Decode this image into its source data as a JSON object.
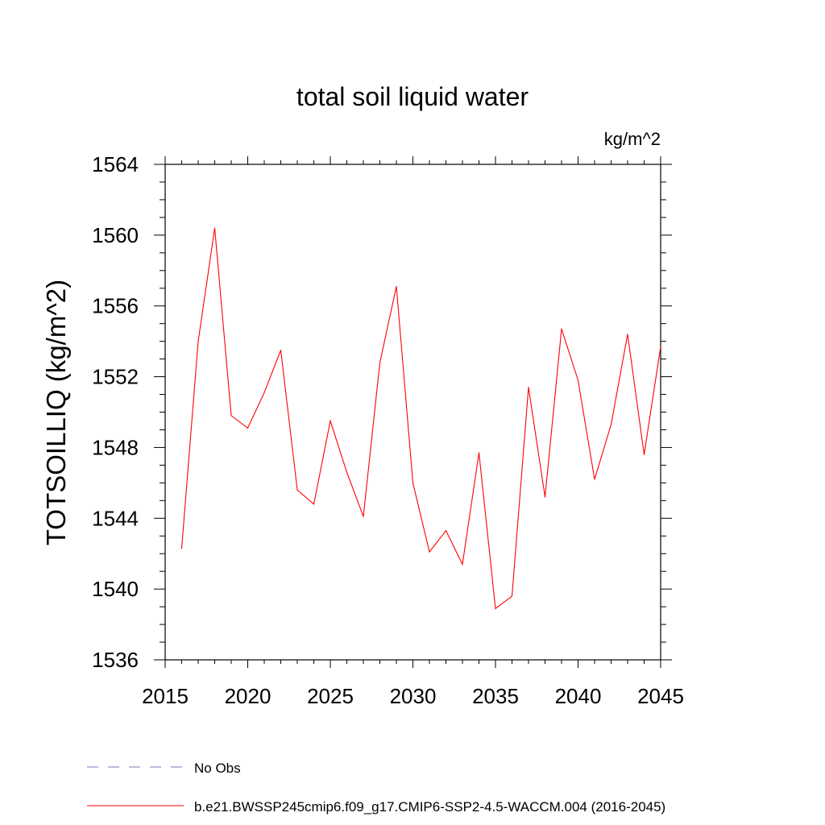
{
  "chart_data": {
    "type": "line",
    "title": "total soil liquid water",
    "units_label": "kg/m^2",
    "ylabel": "TOTSOILLIQ  (kg/m^2)",
    "xlabel": "",
    "xlim": [
      2015,
      2045
    ],
    "ylim": [
      1536,
      1564
    ],
    "x_ticks": [
      2015,
      2020,
      2025,
      2030,
      2035,
      2040,
      2045
    ],
    "x_tick_labels": [
      "2015",
      "2020",
      "2025",
      "2030",
      "2035",
      "2040",
      "2045"
    ],
    "y_ticks": [
      1536,
      1540,
      1544,
      1548,
      1552,
      1556,
      1560,
      1564
    ],
    "y_tick_labels": [
      "1536",
      "1540",
      "1544",
      "1548",
      "1552",
      "1556",
      "1560",
      "1564"
    ],
    "grid": false,
    "series": [
      {
        "name": "b.e21.BWSSP245cmip6.f09_g17.CMIP6-SSP2-4.5-WACCM.004 (2016-2045)",
        "color": "#ff0000",
        "style": "solid",
        "x": [
          2016,
          2017,
          2018,
          2019,
          2020,
          2021,
          2022,
          2023,
          2024,
          2025,
          2026,
          2027,
          2028,
          2029,
          2030,
          2031,
          2032,
          2033,
          2034,
          2035,
          2036,
          2037,
          2038,
          2039,
          2040,
          2041,
          2042,
          2043,
          2044,
          2045
        ],
        "values": [
          1542.3,
          1554.0,
          1560.4,
          1549.8,
          1549.1,
          1551.1,
          1553.5,
          1545.6,
          1544.8,
          1549.5,
          1546.6,
          1544.1,
          1552.8,
          1557.1,
          1546.0,
          1542.1,
          1543.3,
          1541.4,
          1547.7,
          1538.9,
          1539.6,
          1551.4,
          1545.2,
          1554.7,
          1551.8,
          1546.2,
          1549.3,
          1554.4,
          1547.6,
          1553.7
        ]
      }
    ],
    "legend": {
      "placement": "bottom-left",
      "entries": [
        {
          "label": "No Obs",
          "color": "#7b74b8",
          "style": "dashed"
        },
        {
          "label": "b.e21.BWSSP245cmip6.f09_g17.CMIP6-SSP2-4.5-WACCM.004 (2016-2045)",
          "color": "#ff0000",
          "style": "solid"
        }
      ]
    }
  }
}
